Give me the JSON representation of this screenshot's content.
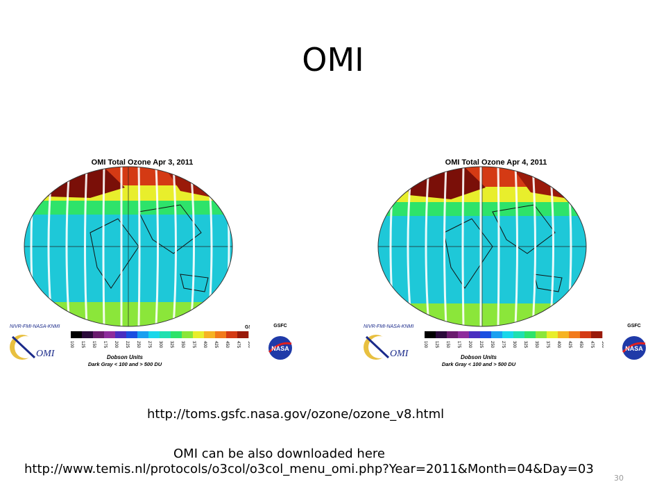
{
  "slide": {
    "title": "OMI",
    "page_number": "30"
  },
  "maps": [
    {
      "title": "OMI Total Ozone Apr  3, 2011",
      "credit_top": "NIVR-FMI-NASA-KNMI",
      "instrument_logo_text": "OMI",
      "agency_label": "GSFC",
      "agency_logo_text": "NASA",
      "colorbar_ticks": [
        "100",
        "125",
        "150",
        "175",
        "200",
        "225",
        "250",
        "275",
        "300",
        "325",
        "350",
        "375",
        "400",
        "425",
        "450",
        "475",
        "500"
      ],
      "colorbar_unit": "Dobson Units",
      "colorbar_note": "Dark Gray < 100 and > 500 DU"
    },
    {
      "title": "OMI Total Ozone Apr  4, 2011",
      "credit_top": "NIVR-FMI-NASA-KNMI",
      "instrument_logo_text": "OMI",
      "agency_label": "GSFC",
      "agency_logo_text": "NASA",
      "colorbar_ticks": [
        "100",
        "125",
        "150",
        "175",
        "200",
        "225",
        "250",
        "275",
        "300",
        "325",
        "350",
        "375",
        "400",
        "425",
        "450",
        "475",
        "500"
      ],
      "colorbar_unit": "Dobson Units",
      "colorbar_note": "Dark Gray < 100 and > 500 DU"
    }
  ],
  "colorbar_colors": [
    "#000000",
    "#2a0a3a",
    "#6a1b6e",
    "#8e2c9c",
    "#4a2ec0",
    "#1b4fe0",
    "#1aa0f0",
    "#19d7ea",
    "#1fe0b0",
    "#2ee36a",
    "#8be63a",
    "#e8ee2c",
    "#f6b323",
    "#f27a1b",
    "#d43a14",
    "#9a1a0a"
  ],
  "links": {
    "toms": "http://toms.gsfc.nasa.gov/ozone/ozone_v8.html",
    "note": "OMI can be also downloaded here",
    "temis": "http://www.temis.nl/protocols/o3col/o3col_menu_omi.php?Year=2011&Month=04&Day=03"
  }
}
